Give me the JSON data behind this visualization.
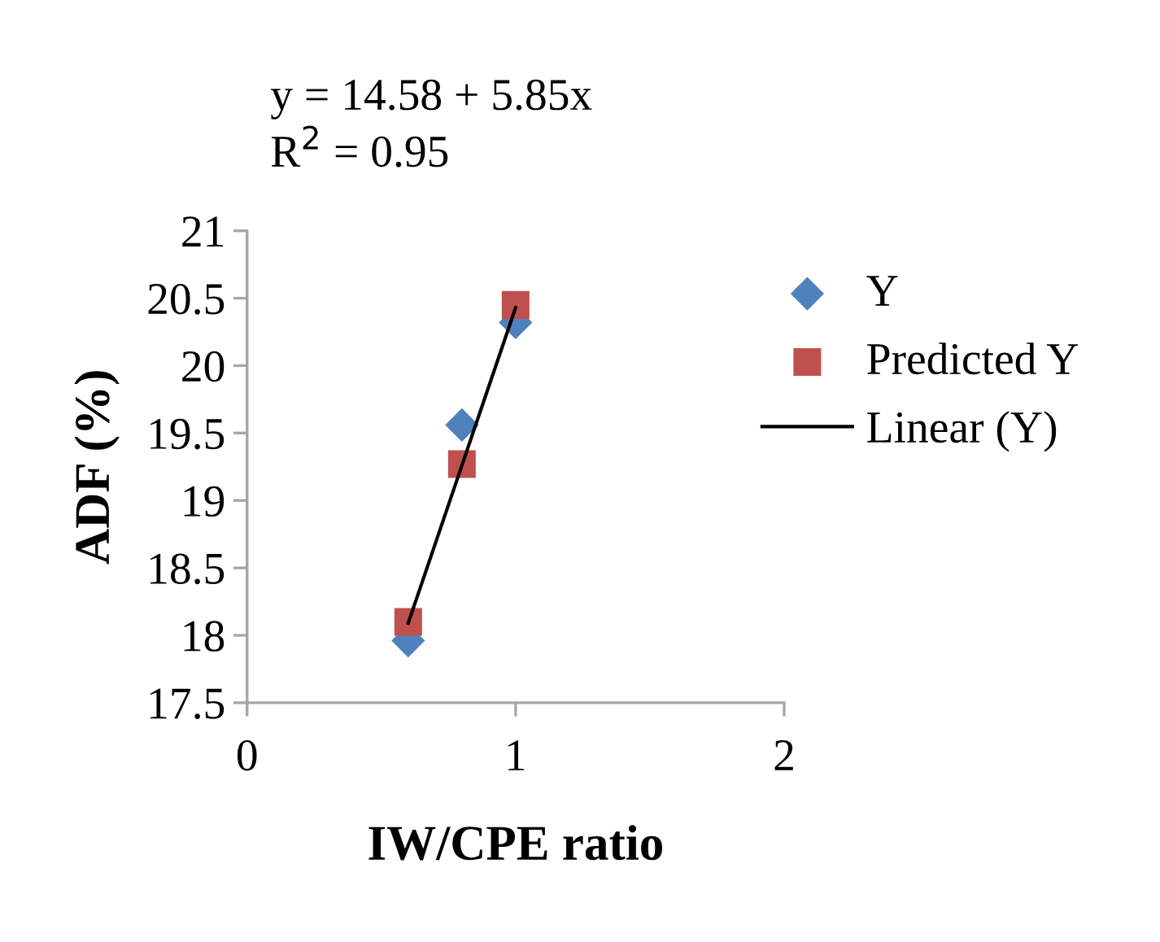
{
  "chart_data": {
    "type": "scatter",
    "xlabel": "IW/CPE ratio",
    "ylabel": "ADF (%)",
    "annotations": [
      "y = 14.58 + 5.85x",
      "R$^{2}$ = 0.95"
    ],
    "xlim": [
      0,
      2
    ],
    "xticks": [
      0,
      1,
      2
    ],
    "ylim": [
      17.5,
      21
    ],
    "yticks": [
      17.5,
      18,
      18.5,
      19,
      19.5,
      20,
      20.5,
      21
    ],
    "grid": false,
    "legend": "right",
    "series": [
      {
        "name": "Y",
        "marker": "diamond",
        "color": "#4f81bd",
        "x": [
          0.6,
          0.8,
          1.0
        ],
        "values": [
          17.96,
          19.56,
          20.32
        ]
      },
      {
        "name": "Predicted Y",
        "marker": "square",
        "color": "#c0504d",
        "x": [
          0.6,
          0.8,
          1.0
        ],
        "values": [
          18.1,
          19.27,
          20.45
        ]
      },
      {
        "name": "Linear (Y)",
        "type": "line",
        "marker": "none",
        "line_style": "solid",
        "color": "#000000",
        "x": [
          0.6,
          1.0
        ],
        "values": [
          18.09,
          20.43
        ]
      }
    ]
  }
}
